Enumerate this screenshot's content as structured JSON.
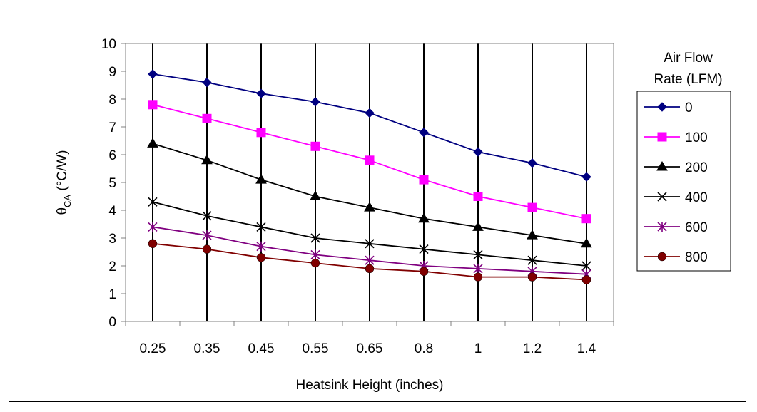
{
  "chart_data": {
    "type": "line",
    "title": "",
    "xlabel": "Heatsink Height (inches)",
    "ylabel": "θCA (°C/W)",
    "ylabel_main": "θ",
    "ylabel_sub": "CA",
    "ylabel_rest": " (°C/W)",
    "categories": [
      "0.25",
      "0.35",
      "0.45",
      "0.55",
      "0.65",
      "0.8",
      "1",
      "1.2",
      "1.4"
    ],
    "ylim": [
      0,
      10
    ],
    "yticks": [
      "0",
      "1",
      "2",
      "3",
      "4",
      "5",
      "6",
      "7",
      "8",
      "9",
      "10"
    ],
    "grid": "vertical",
    "legend_position": "right",
    "legend_title": [
      "Air Flow",
      "Rate (LFM)"
    ],
    "series": [
      {
        "name": "0",
        "color": "#000080",
        "marker": "diamond",
        "values": [
          8.9,
          8.6,
          8.2,
          7.9,
          7.5,
          6.8,
          6.1,
          5.7,
          5.2
        ]
      },
      {
        "name": "100",
        "color": "#ff00ff",
        "marker": "square",
        "values": [
          7.8,
          7.3,
          6.8,
          6.3,
          5.8,
          5.1,
          4.5,
          4.1,
          3.7
        ]
      },
      {
        "name": "200",
        "color": "#000000",
        "marker": "triangle",
        "values": [
          6.4,
          5.8,
          5.1,
          4.5,
          4.1,
          3.7,
          3.4,
          3.1,
          2.8
        ]
      },
      {
        "name": "400",
        "color": "#000000",
        "marker": "x",
        "values": [
          4.3,
          3.8,
          3.4,
          3.0,
          2.8,
          2.6,
          2.4,
          2.2,
          2.0
        ]
      },
      {
        "name": "600",
        "color": "#800080",
        "marker": "star",
        "values": [
          3.4,
          3.1,
          2.7,
          2.4,
          2.2,
          2.0,
          1.9,
          1.8,
          1.7
        ]
      },
      {
        "name": "800",
        "color": "#800000",
        "marker": "circle",
        "values": [
          2.8,
          2.6,
          2.3,
          2.1,
          1.9,
          1.8,
          1.6,
          1.6,
          1.5
        ]
      }
    ]
  }
}
